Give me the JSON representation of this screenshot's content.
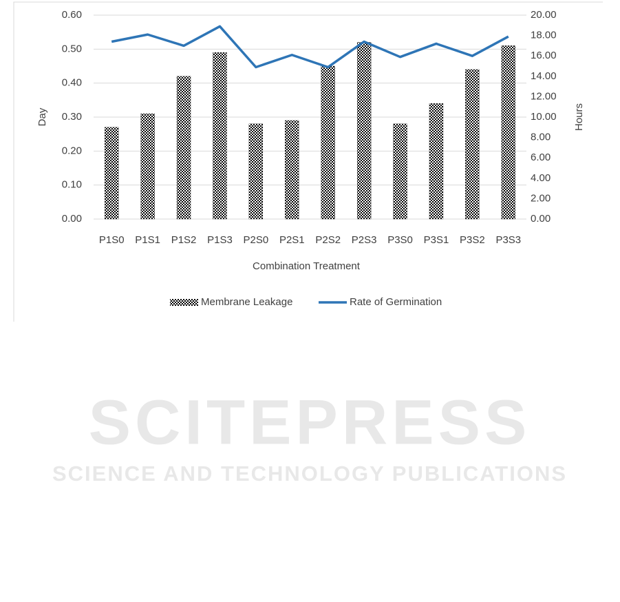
{
  "chart_data": {
    "type": "bar-line",
    "x_label": "Combination Treatment",
    "y_label": "Day",
    "y2_label": "Hours",
    "categories": [
      "P1S0",
      "P1S1",
      "P1S2",
      "P1S3",
      "P2S0",
      "P2S1",
      "P2S2",
      "P2S3",
      "P3S0",
      "P3S1",
      "P3S2",
      "P3S3"
    ],
    "series": [
      {
        "name": "Membrane Leakage",
        "type": "bar",
        "color": "#000000",
        "values": [
          0.27,
          0.31,
          0.42,
          0.49,
          0.28,
          0.29,
          0.45,
          0.52,
          0.28,
          0.34,
          0.44,
          0.51
        ]
      },
      {
        "name": "Rate of Germination",
        "type": "line",
        "axis": "y2",
        "color": "#2e75b6",
        "values": [
          17.4,
          18.1,
          17.0,
          18.9,
          14.9,
          16.1,
          14.9,
          17.4,
          15.9,
          17.2,
          16.0,
          17.9
        ]
      }
    ],
    "ylim": [
      0,
      0.6
    ],
    "yticks": [
      {
        "value": 0,
        "label": "0.00"
      },
      {
        "value": 0.1,
        "label": "0.10"
      },
      {
        "value": 0.2,
        "label": "0.20"
      },
      {
        "value": 0.3,
        "label": "0.30"
      },
      {
        "value": 0.4,
        "label": "0.40"
      },
      {
        "value": 0.5,
        "label": "0.50"
      },
      {
        "value": 0.6,
        "label": "0.60"
      }
    ],
    "y2lim": [
      0,
      20
    ],
    "y2ticks": [
      {
        "value": 0,
        "label": "0.00"
      },
      {
        "value": 2,
        "label": "2.00"
      },
      {
        "value": 4,
        "label": "4.00"
      },
      {
        "value": 6,
        "label": "6.00"
      },
      {
        "value": 8,
        "label": "8.00"
      },
      {
        "value": 10,
        "label": "10.00"
      },
      {
        "value": 12,
        "label": "12.00"
      },
      {
        "value": 14,
        "label": "14.00"
      },
      {
        "value": 16,
        "label": "16.00"
      },
      {
        "value": 18,
        "label": "18.00"
      },
      {
        "value": 20,
        "label": "20.00"
      }
    ],
    "grid": true,
    "legend": "bottom"
  },
  "watermark": {
    "title": "SCITEPRESS",
    "subtitle": "SCIENCE AND TECHNOLOGY PUBLICATIONS"
  }
}
